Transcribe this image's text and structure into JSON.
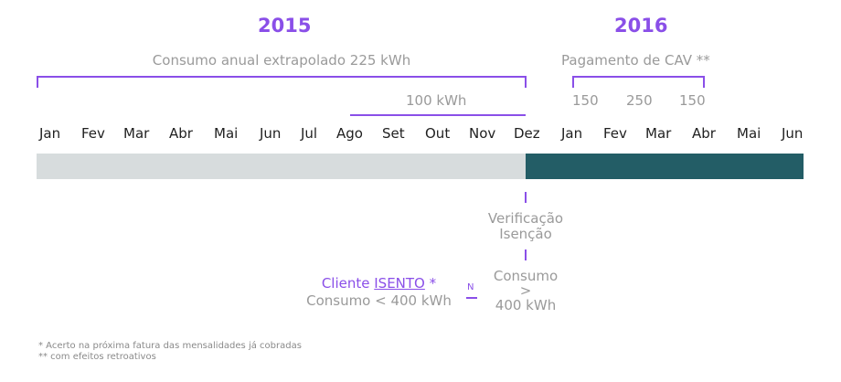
{
  "years": {
    "y2015": "2015",
    "y2016": "2016"
  },
  "brackets": {
    "annual_consumption": "Consumo anual extrapolado 225 kWh",
    "cav_payment": "Pagamento de CAV **",
    "partial_consumption": "100 kWh",
    "cav_values": [
      "150",
      "250",
      "150"
    ]
  },
  "months": [
    "Jan",
    "Fev",
    "Mar",
    "Abr",
    "Mai",
    "Jun",
    "Jul",
    "Ago",
    "Set",
    "Out",
    "Nov",
    "Dez",
    "Jan",
    "Fev",
    "Mar",
    "Abr",
    "Mai",
    "Jun"
  ],
  "verification": {
    "line1": "Verificação",
    "line2": "Isenção"
  },
  "outcome_left": {
    "prefix": "Cliente ",
    "status": "ISENTO",
    "suffix": " *",
    "condition": "Consumo < 400 kWh"
  },
  "branch_label": "N",
  "outcome_right": {
    "line1": "Consumo",
    "line2": ">",
    "line3": "400 kWh"
  },
  "footnotes": {
    "note1": "* Acerto na próxima fatura das mensalidades já cobradas",
    "note2": "** com efeitos retroativos"
  },
  "colors": {
    "accent": "#8a4fe8",
    "bar_2015": "#d7dcdd",
    "bar_2016": "#235d66"
  }
}
